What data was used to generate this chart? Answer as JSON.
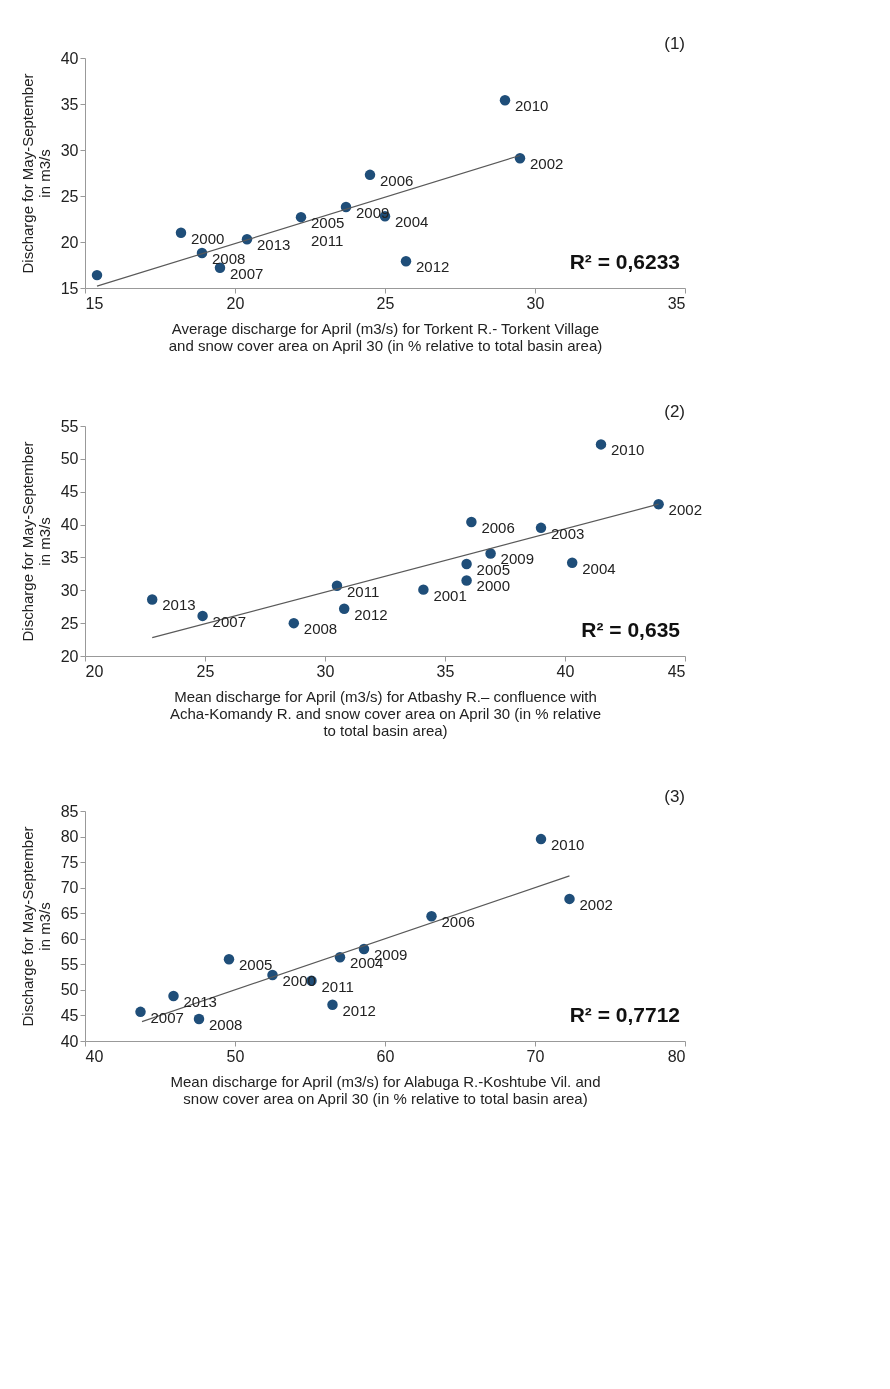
{
  "chart_data": [
    {
      "type": "scatter",
      "xlabel": "Average discharge for April (m3/s) for Torkent R.- Torkent Village\nand snow cover area on April 30 (in % relative to total basin area)",
      "ylabel": "Discharge for May-September\nin m3/s",
      "xlim": [
        15,
        35
      ],
      "ylim": [
        15,
        40
      ],
      "xticks": [
        15,
        20,
        25,
        30,
        35
      ],
      "yticks": [
        15,
        20,
        25,
        30,
        35,
        40
      ],
      "grid": false,
      "annotations": [
        "(1)",
        "R² = 0,6233",
        {
          "text": "2000",
          "x": 18.2,
          "y": 21.0
        },
        {
          "text": "2008",
          "x": 18.9,
          "y": 18.8
        },
        {
          "text": "2007",
          "x": 19.5,
          "y": 17.2
        },
        {
          "text": "2013",
          "x": 20.4,
          "y": 20.3
        },
        {
          "text": "2005",
          "x": 22.2,
          "y": 22.7
        },
        {
          "text": "2011",
          "x": 22.2,
          "y": 22.7
        },
        {
          "text": "2009",
          "x": 23.7,
          "y": 23.8
        },
        {
          "text": "2006",
          "x": 24.5,
          "y": 27.3
        },
        {
          "text": "2004",
          "x": 25.0,
          "y": 22.8
        },
        {
          "text": "2012",
          "x": 25.7,
          "y": 17.9
        },
        {
          "text": "2010",
          "x": 29.0,
          "y": 35.4
        },
        {
          "text": "2002",
          "x": 29.5,
          "y": 29.1
        }
      ],
      "series": [
        {
          "marker": "circle",
          "color": "#1f4e79",
          "x": [
            15.4,
            18.2,
            18.9,
            19.5,
            20.4,
            22.2,
            23.7,
            24.5,
            25.0,
            25.7,
            29.0,
            29.5
          ],
          "values": [
            16.4,
            21.0,
            18.8,
            17.2,
            20.3,
            22.7,
            23.8,
            27.3,
            22.8,
            17.9,
            35.4,
            29.1
          ]
        },
        {
          "type": "line",
          "color": "#595959",
          "x": [
            15.4,
            29.5
          ],
          "values": [
            15.2,
            29.4
          ]
        }
      ]
    },
    {
      "type": "scatter",
      "xlabel": "Mean discharge for April (m3/s) for Atbashy R.– confluence with\nAcha-Komandy R.  and snow cover area on April 30 (in % relative\nto total basin area)",
      "ylabel": "Discharge for May-September\nin m3/s",
      "xlim": [
        20,
        45
      ],
      "ylim": [
        20,
        55
      ],
      "xticks": [
        20,
        25,
        30,
        35,
        40,
        45
      ],
      "yticks": [
        20,
        25,
        30,
        35,
        40,
        45,
        50,
        55
      ],
      "grid": false,
      "annotations": [
        "(2)",
        "R² = 0,635",
        {
          "text": "2010",
          "x": 41.5,
          "y": 52.2
        },
        {
          "text": "2002",
          "x": 43.9,
          "y": 43.1
        },
        {
          "text": "2006",
          "x": 36.1,
          "y": 40.4
        },
        {
          "text": "2003",
          "x": 39.0,
          "y": 39.5
        },
        {
          "text": "2009",
          "x": 36.9,
          "y": 35.6
        },
        {
          "text": "2005",
          "x": 35.9,
          "y": 34.0
        },
        {
          "text": "2004",
          "x": 40.3,
          "y": 34.2
        },
        {
          "text": "2000",
          "x": 35.9,
          "y": 31.5
        },
        {
          "text": "2001",
          "x": 34.1,
          "y": 30.1
        },
        {
          "text": "2011",
          "x": 30.5,
          "y": 30.7
        },
        {
          "text": "2012",
          "x": 30.8,
          "y": 27.2
        },
        {
          "text": "2013",
          "x": 22.8,
          "y": 28.6
        },
        {
          "text": "2007",
          "x": 24.9,
          "y": 26.1
        },
        {
          "text": "2008",
          "x": 28.7,
          "y": 25.0
        }
      ],
      "series": [
        {
          "marker": "circle",
          "color": "#1f4e79",
          "x": [
            41.5,
            43.9,
            36.1,
            39.0,
            36.9,
            35.9,
            40.3,
            35.9,
            34.1,
            30.5,
            30.8,
            22.8,
            24.9,
            28.7
          ],
          "values": [
            52.2,
            43.1,
            40.4,
            39.5,
            35.6,
            34.0,
            34.2,
            31.5,
            30.1,
            30.7,
            27.2,
            28.6,
            26.1,
            25.0
          ]
        },
        {
          "type": "line",
          "color": "#595959",
          "x": [
            22.8,
            43.9
          ],
          "values": [
            22.8,
            43.1
          ]
        }
      ]
    },
    {
      "type": "scatter",
      "xlabel": "Mean discharge for April (m3/s) for Alabuga R.-Koshtube Vil. and\nsnow cover area on April 30 (in % relative to total basin area)",
      "ylabel": "Discharge for May-September\nin m3/s",
      "xlim": [
        40,
        80
      ],
      "ylim": [
        40,
        85
      ],
      "xticks": [
        40,
        50,
        60,
        70,
        80
      ],
      "yticks": [
        40,
        45,
        50,
        55,
        60,
        65,
        70,
        75,
        80,
        85
      ],
      "grid": false,
      "annotations": [
        "(3)",
        "R² = 0,7712",
        {
          "text": "2010",
          "x": 70.4,
          "y": 79.5
        },
        {
          "text": "2002",
          "x": 72.3,
          "y": 67.8
        },
        {
          "text": "2006",
          "x": 63.1,
          "y": 64.4
        },
        {
          "text": "2009",
          "x": 58.6,
          "y": 58.0
        },
        {
          "text": "2004",
          "x": 57.0,
          "y": 56.4
        },
        {
          "text": "2011",
          "x": 55.1,
          "y": 51.8
        },
        {
          "text": "2012",
          "x": 56.5,
          "y": 47.1
        },
        {
          "text": "2000",
          "x": 52.5,
          "y": 52.9
        },
        {
          "text": "2005",
          "x": 49.6,
          "y": 56.0
        },
        {
          "text": "2013",
          "x": 45.9,
          "y": 48.8
        },
        {
          "text": "2007",
          "x": 43.7,
          "y": 45.7
        },
        {
          "text": "2008",
          "x": 47.6,
          "y": 44.3
        }
      ],
      "series": [
        {
          "marker": "circle",
          "color": "#1f4e79",
          "x": [
            70.4,
            72.3,
            63.1,
            58.6,
            57.0,
            55.1,
            56.5,
            52.5,
            49.6,
            45.9,
            43.7,
            47.6
          ],
          "values": [
            79.5,
            67.8,
            64.4,
            58.0,
            56.4,
            51.8,
            47.1,
            52.9,
            56.0,
            48.8,
            45.7,
            44.3
          ]
        },
        {
          "type": "line",
          "color": "#595959",
          "x": [
            43.8,
            72.3
          ],
          "values": [
            43.8,
            72.3
          ]
        }
      ]
    }
  ]
}
